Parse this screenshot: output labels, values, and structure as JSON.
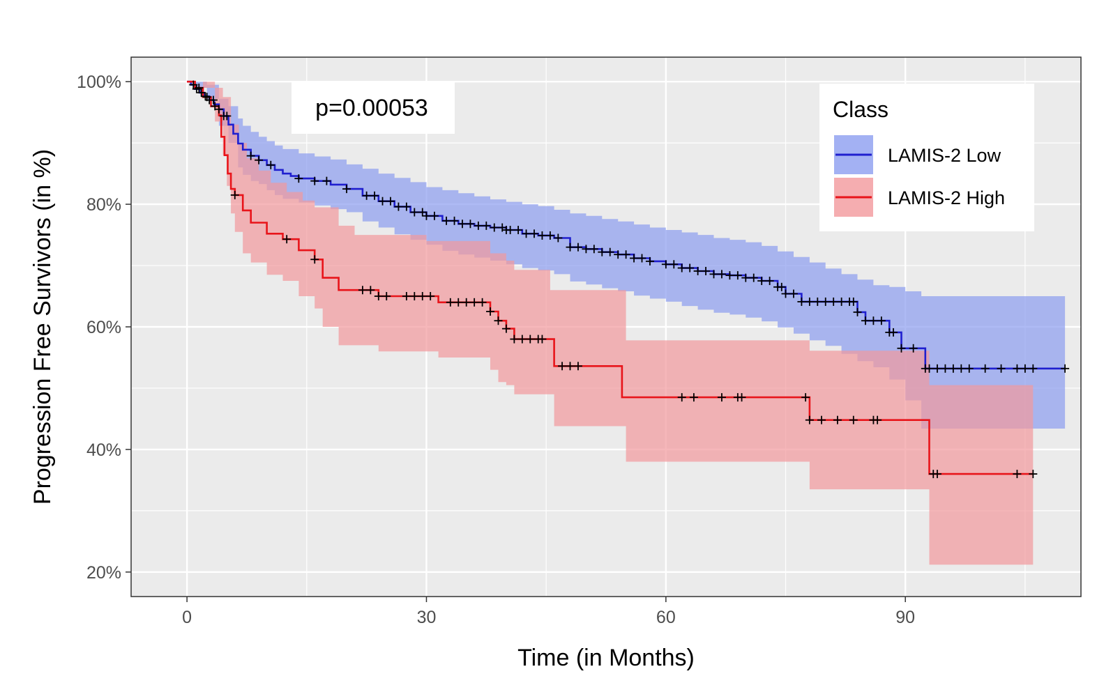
{
  "chart_data": {
    "type": "line",
    "subtype": "kaplan-meier",
    "title": "",
    "xlabel": "Time (in Months)",
    "ylabel": "Progression Free Survivors (in %)",
    "xlim": [
      -7,
      112
    ],
    "ylim": [
      16,
      104
    ],
    "x_ticks": [
      0,
      30,
      60,
      90
    ],
    "x_tick_labels": [
      "0",
      "30",
      "60",
      "90"
    ],
    "y_ticks": [
      20,
      40,
      60,
      80,
      100
    ],
    "y_tick_labels": [
      "20%",
      "40%",
      "60%",
      "80%",
      "100%"
    ],
    "grid": true,
    "annotation": "p=0.00053",
    "legend": {
      "title": "Class",
      "position": "top-right",
      "entries": [
        "LAMIS-2 Low",
        "LAMIS-2 High"
      ]
    },
    "series": [
      {
        "name": "LAMIS-2 Low",
        "color": "#1f1fcf",
        "band_color": "#8c9df0",
        "steps": [
          [
            0,
            100
          ],
          [
            0.5,
            99.5
          ],
          [
            1,
            98.8
          ],
          [
            1.6,
            98.2
          ],
          [
            2.2,
            97.6
          ],
          [
            2.8,
            97
          ],
          [
            3.4,
            96.3
          ],
          [
            4,
            95.5
          ],
          [
            4.6,
            94.4
          ],
          [
            5.2,
            93
          ],
          [
            5.8,
            91.5
          ],
          [
            6.4,
            89.9
          ],
          [
            7,
            88.9
          ],
          [
            8,
            87.9
          ],
          [
            9,
            87.2
          ],
          [
            10,
            86.4
          ],
          [
            11,
            85.6
          ],
          [
            12,
            85
          ],
          [
            13,
            84.6
          ],
          [
            14,
            84.2
          ],
          [
            16,
            83.8
          ],
          [
            18,
            83.2
          ],
          [
            20,
            82.5
          ],
          [
            22,
            81.4
          ],
          [
            24,
            80.5
          ],
          [
            26,
            79.6
          ],
          [
            28,
            78.7
          ],
          [
            30,
            78.1
          ],
          [
            32,
            77.3
          ],
          [
            34,
            76.8
          ],
          [
            36,
            76.5
          ],
          [
            38,
            76.2
          ],
          [
            40,
            75.8
          ],
          [
            42,
            75.2
          ],
          [
            44,
            74.9
          ],
          [
            46,
            74.5
          ],
          [
            48,
            73
          ],
          [
            50,
            72.7
          ],
          [
            52,
            72.2
          ],
          [
            54,
            71.8
          ],
          [
            56,
            71.2
          ],
          [
            58,
            70.7
          ],
          [
            60,
            70.2
          ],
          [
            62,
            69.6
          ],
          [
            64,
            69.1
          ],
          [
            66,
            68.6
          ],
          [
            68,
            68.4
          ],
          [
            70,
            68
          ],
          [
            72,
            67.5
          ],
          [
            74,
            66.5
          ],
          [
            75,
            65.4
          ],
          [
            77,
            64.1
          ],
          [
            84,
            62.4
          ],
          [
            85,
            61
          ],
          [
            88,
            59.1
          ],
          [
            89.5,
            56.5
          ],
          [
            92.5,
            53.2
          ],
          [
            110,
            53.2
          ]
        ],
        "upper": [
          [
            0,
            100
          ],
          [
            1,
            100
          ],
          [
            2.5,
            99.5
          ],
          [
            4,
            97.2
          ],
          [
            5.2,
            96
          ],
          [
            6.4,
            94
          ],
          [
            7,
            92.8
          ],
          [
            8,
            91.8
          ],
          [
            9,
            91
          ],
          [
            10,
            90.3
          ],
          [
            11,
            89.6
          ],
          [
            12,
            89
          ],
          [
            14,
            88.3
          ],
          [
            16,
            87.8
          ],
          [
            18,
            87.3
          ],
          [
            20,
            86.5
          ],
          [
            22,
            85.8
          ],
          [
            24,
            85
          ],
          [
            26,
            84.3
          ],
          [
            28,
            83.6
          ],
          [
            30,
            82.8
          ],
          [
            32,
            82.3
          ],
          [
            34,
            81.8
          ],
          [
            36,
            81.3
          ],
          [
            38,
            80.8
          ],
          [
            40,
            80.4
          ],
          [
            42,
            80
          ],
          [
            44,
            79.7
          ],
          [
            46,
            79.1
          ],
          [
            48,
            78.5
          ],
          [
            50,
            78.1
          ],
          [
            52,
            77.6
          ],
          [
            54,
            77.2
          ],
          [
            56,
            76.7
          ],
          [
            58,
            76.2
          ],
          [
            60,
            75.8
          ],
          [
            62,
            75.4
          ],
          [
            64,
            75
          ],
          [
            66,
            74.5
          ],
          [
            68,
            74.2
          ],
          [
            70,
            73.8
          ],
          [
            72,
            73.2
          ],
          [
            74,
            72.3
          ],
          [
            76,
            71.4
          ],
          [
            78,
            70.5
          ],
          [
            80,
            69.5
          ],
          [
            82,
            68.6
          ],
          [
            84,
            67.7
          ],
          [
            86,
            66.8
          ],
          [
            88,
            66.5
          ],
          [
            90,
            65.8
          ],
          [
            92,
            65
          ],
          [
            110,
            65
          ]
        ],
        "lower": [
          [
            0,
            100
          ],
          [
            1,
            99
          ],
          [
            2.5,
            97.2
          ],
          [
            4,
            92.8
          ],
          [
            5.2,
            90
          ],
          [
            6.4,
            86
          ],
          [
            7,
            84.8
          ],
          [
            8,
            83.8
          ],
          [
            9,
            83.3
          ],
          [
            10,
            82.3
          ],
          [
            11,
            81.5
          ],
          [
            12,
            80.9
          ],
          [
            14,
            80.3
          ],
          [
            16,
            79.8
          ],
          [
            18,
            79.2
          ],
          [
            20,
            78.7
          ],
          [
            22,
            77.2
          ],
          [
            24,
            76.2
          ],
          [
            26,
            75.1
          ],
          [
            28,
            74.2
          ],
          [
            30,
            73.4
          ],
          [
            32,
            72.4
          ],
          [
            34,
            71.8
          ],
          [
            36,
            71.3
          ],
          [
            38,
            70.8
          ],
          [
            40,
            70.2
          ],
          [
            42,
            69.6
          ],
          [
            44,
            69.2
          ],
          [
            46,
            68.6
          ],
          [
            48,
            67.4
          ],
          [
            50,
            66.9
          ],
          [
            52,
            66.3
          ],
          [
            54,
            65.8
          ],
          [
            56,
            65.1
          ],
          [
            58,
            64.6
          ],
          [
            60,
            64.1
          ],
          [
            62,
            63.4
          ],
          [
            64,
            62.8
          ],
          [
            66,
            62.3
          ],
          [
            68,
            62
          ],
          [
            70,
            61.5
          ],
          [
            72,
            60.9
          ],
          [
            74,
            59.9
          ],
          [
            76,
            58.9
          ],
          [
            78,
            57.8
          ],
          [
            80,
            56.9
          ],
          [
            82,
            55.6
          ],
          [
            84,
            54.4
          ],
          [
            86,
            53.4
          ],
          [
            88,
            51.4
          ],
          [
            90,
            48
          ],
          [
            92,
            43.4
          ],
          [
            110,
            43.4
          ]
        ],
        "censor_x": [
          0.8,
          1.2,
          1.8,
          2.3,
          2.8,
          3.3,
          4,
          4.6,
          5,
          8,
          9,
          10.5,
          14,
          16,
          17.5,
          20,
          22.5,
          23.5,
          24.5,
          25.5,
          26.5,
          27.5,
          28.5,
          29.5,
          30,
          31,
          32.5,
          33.5,
          34.5,
          35.5,
          36.5,
          37.5,
          38.5,
          39.5,
          40,
          40.5,
          41.5,
          42.5,
          43.5,
          44.5,
          45.5,
          46.5,
          48,
          49,
          50,
          51,
          52,
          53,
          54,
          55,
          56,
          57,
          58,
          60,
          61,
          62,
          63,
          64,
          65,
          66,
          67,
          68,
          69,
          70,
          71,
          72,
          73,
          74,
          74.5,
          75,
          76,
          77,
          78,
          79,
          80,
          81,
          82,
          83,
          83.5,
          84,
          85,
          86,
          87,
          88,
          88.5,
          89.5,
          91,
          92.5,
          93,
          94,
          95,
          96,
          97,
          98,
          100,
          102,
          104,
          105,
          106,
          110
        ]
      },
      {
        "name": "LAMIS-2 High",
        "color": "#e8141a",
        "band_color": "#f2999c",
        "steps": [
          [
            0,
            100
          ],
          [
            1,
            99
          ],
          [
            2,
            97.5
          ],
          [
            3,
            96
          ],
          [
            4,
            94.5
          ],
          [
            4.3,
            91
          ],
          [
            4.7,
            88
          ],
          [
            5.1,
            85
          ],
          [
            5.5,
            82.5
          ],
          [
            6,
            81.5
          ],
          [
            7,
            79
          ],
          [
            8,
            77
          ],
          [
            10,
            75.2
          ],
          [
            12,
            74.3
          ],
          [
            14,
            72.5
          ],
          [
            16,
            71
          ],
          [
            17,
            68
          ],
          [
            19,
            66
          ],
          [
            22,
            66
          ],
          [
            24,
            65
          ],
          [
            31,
            65
          ],
          [
            31.5,
            64
          ],
          [
            37,
            64
          ],
          [
            38,
            62.5
          ],
          [
            39,
            61
          ],
          [
            40,
            59.7
          ],
          [
            41,
            58
          ],
          [
            45.5,
            58
          ],
          [
            46,
            53.6
          ],
          [
            54.5,
            53.6
          ],
          [
            54.5,
            48.5
          ],
          [
            78,
            48.5
          ],
          [
            78,
            44.8
          ],
          [
            93,
            44.8
          ],
          [
            93,
            36
          ],
          [
            106,
            36
          ]
        ],
        "upper": [
          [
            0,
            100
          ],
          [
            2,
            100
          ],
          [
            3.5,
            99
          ],
          [
            4.5,
            97.5
          ],
          [
            5.5,
            93
          ],
          [
            6.5,
            90
          ],
          [
            7.5,
            87.5
          ],
          [
            9,
            85.5
          ],
          [
            10.5,
            83.5
          ],
          [
            12.5,
            82
          ],
          [
            14.5,
            80.6
          ],
          [
            16,
            79.5
          ],
          [
            19,
            76.5
          ],
          [
            21,
            75
          ],
          [
            29,
            75
          ],
          [
            30,
            74
          ],
          [
            36,
            74
          ],
          [
            38,
            72
          ],
          [
            40,
            70.8
          ],
          [
            41,
            69.3
          ],
          [
            44,
            69.3
          ],
          [
            45.5,
            66
          ],
          [
            54.5,
            66
          ],
          [
            55,
            57.8
          ],
          [
            78,
            57.8
          ],
          [
            78,
            56.1
          ],
          [
            93,
            56.1
          ],
          [
            93,
            50.5
          ],
          [
            106,
            50.5
          ]
        ],
        "lower": [
          [
            0,
            100
          ],
          [
            2,
            99
          ],
          [
            3.5,
            93.5
          ],
          [
            4.5,
            88
          ],
          [
            5,
            83
          ],
          [
            5.5,
            78.5
          ],
          [
            6,
            75.5
          ],
          [
            7,
            72
          ],
          [
            8,
            70.5
          ],
          [
            10,
            68.5
          ],
          [
            12,
            67.5
          ],
          [
            14,
            65
          ],
          [
            16,
            63
          ],
          [
            17,
            60
          ],
          [
            19,
            57
          ],
          [
            22,
            57
          ],
          [
            24,
            56
          ],
          [
            31,
            56
          ],
          [
            31.5,
            55
          ],
          [
            37,
            55
          ],
          [
            38,
            53
          ],
          [
            39,
            51
          ],
          [
            40,
            50.5
          ],
          [
            41,
            49
          ],
          [
            45.5,
            49
          ],
          [
            46,
            43.8
          ],
          [
            54.5,
            43.8
          ],
          [
            55,
            38
          ],
          [
            78,
            38
          ],
          [
            78,
            33.5
          ],
          [
            93,
            33.5
          ],
          [
            93,
            21.2
          ],
          [
            106,
            21.2
          ]
        ],
        "censor_x": [
          1.5,
          2.5,
          3.5,
          6,
          12.5,
          16,
          22,
          23,
          24,
          25,
          27.5,
          28.5,
          29.5,
          30.5,
          33,
          34,
          35,
          36,
          37,
          38,
          39,
          40,
          41,
          42,
          43,
          44,
          44.5,
          47,
          48,
          49,
          62,
          63.5,
          67,
          69,
          69.5,
          77.5,
          78,
          79.5,
          81.5,
          83.5,
          86,
          86.5,
          93.5,
          94,
          104,
          106
        ]
      }
    ]
  }
}
